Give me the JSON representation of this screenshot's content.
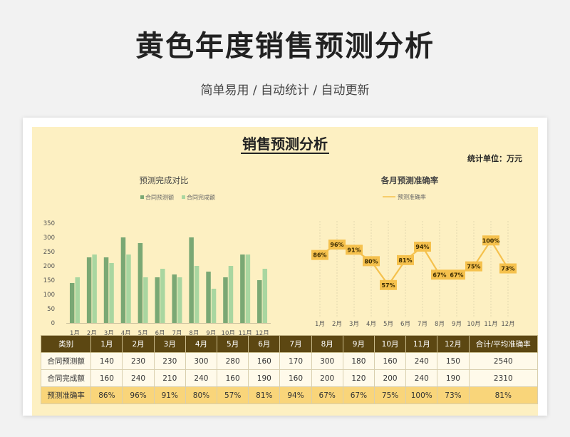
{
  "page": {
    "title": "黄色年度销售预测分析",
    "subtitle": "简单易用 / 自动统计 / 自动更新"
  },
  "sheet": {
    "title": "销售预测分析",
    "unit": "统计单位：万元"
  },
  "colors": {
    "forecast_bar": "#7aa874",
    "actual_bar": "#a9d6a0",
    "line": "#f5c14d",
    "header_bg": "#5c4712",
    "accuracy_row": "#f9d57a"
  },
  "chart_data": [
    {
      "type": "bar",
      "title": "预测完成对比",
      "categories": [
        "1月",
        "2月",
        "3月",
        "4月",
        "5月",
        "6月",
        "7月",
        "8月",
        "9月",
        "10月",
        "11月",
        "12月"
      ],
      "series": [
        {
          "name": "合同预测额",
          "values": [
            140,
            230,
            230,
            300,
            280,
            160,
            170,
            300,
            180,
            160,
            240,
            150
          ]
        },
        {
          "name": "合同完成额",
          "values": [
            160,
            240,
            210,
            240,
            160,
            190,
            160,
            200,
            120,
            200,
            240,
            190
          ]
        }
      ],
      "ylim": [
        0,
        350
      ],
      "yticks": [
        0,
        50,
        100,
        150,
        200,
        250,
        300,
        350
      ],
      "legend": "top"
    },
    {
      "type": "line",
      "title": "各月预测准确率",
      "categories": [
        "1月",
        "2月",
        "3月",
        "4月",
        "5月",
        "6月",
        "7月",
        "8月",
        "9月",
        "10月",
        "11月",
        "12月"
      ],
      "series": [
        {
          "name": "预测准确率",
          "values": [
            86,
            96,
            91,
            80,
            57,
            81,
            94,
            67,
            67,
            75,
            100,
            73
          ],
          "labels": [
            "86%",
            "96%",
            "91%",
            "80%",
            "57%",
            "81%",
            "94%",
            "67%",
            "67%",
            "75%",
            "100%",
            "73%"
          ]
        }
      ],
      "legend": "top"
    }
  ],
  "table": {
    "headers": [
      "类别",
      "1月",
      "2月",
      "3月",
      "4月",
      "5月",
      "6月",
      "7月",
      "8月",
      "9月",
      "10月",
      "11月",
      "12月",
      "合计/平均准确率"
    ],
    "rows": [
      [
        "合同预测额",
        "140",
        "230",
        "230",
        "300",
        "280",
        "160",
        "170",
        "300",
        "180",
        "160",
        "240",
        "150",
        "2540"
      ],
      [
        "合同完成额",
        "160",
        "240",
        "210",
        "240",
        "160",
        "190",
        "160",
        "200",
        "120",
        "200",
        "240",
        "190",
        "2310"
      ],
      [
        "预测准确率",
        "86%",
        "96%",
        "91%",
        "80%",
        "57%",
        "81%",
        "94%",
        "67%",
        "67%",
        "75%",
        "100%",
        "73%",
        "81%"
      ]
    ]
  }
}
